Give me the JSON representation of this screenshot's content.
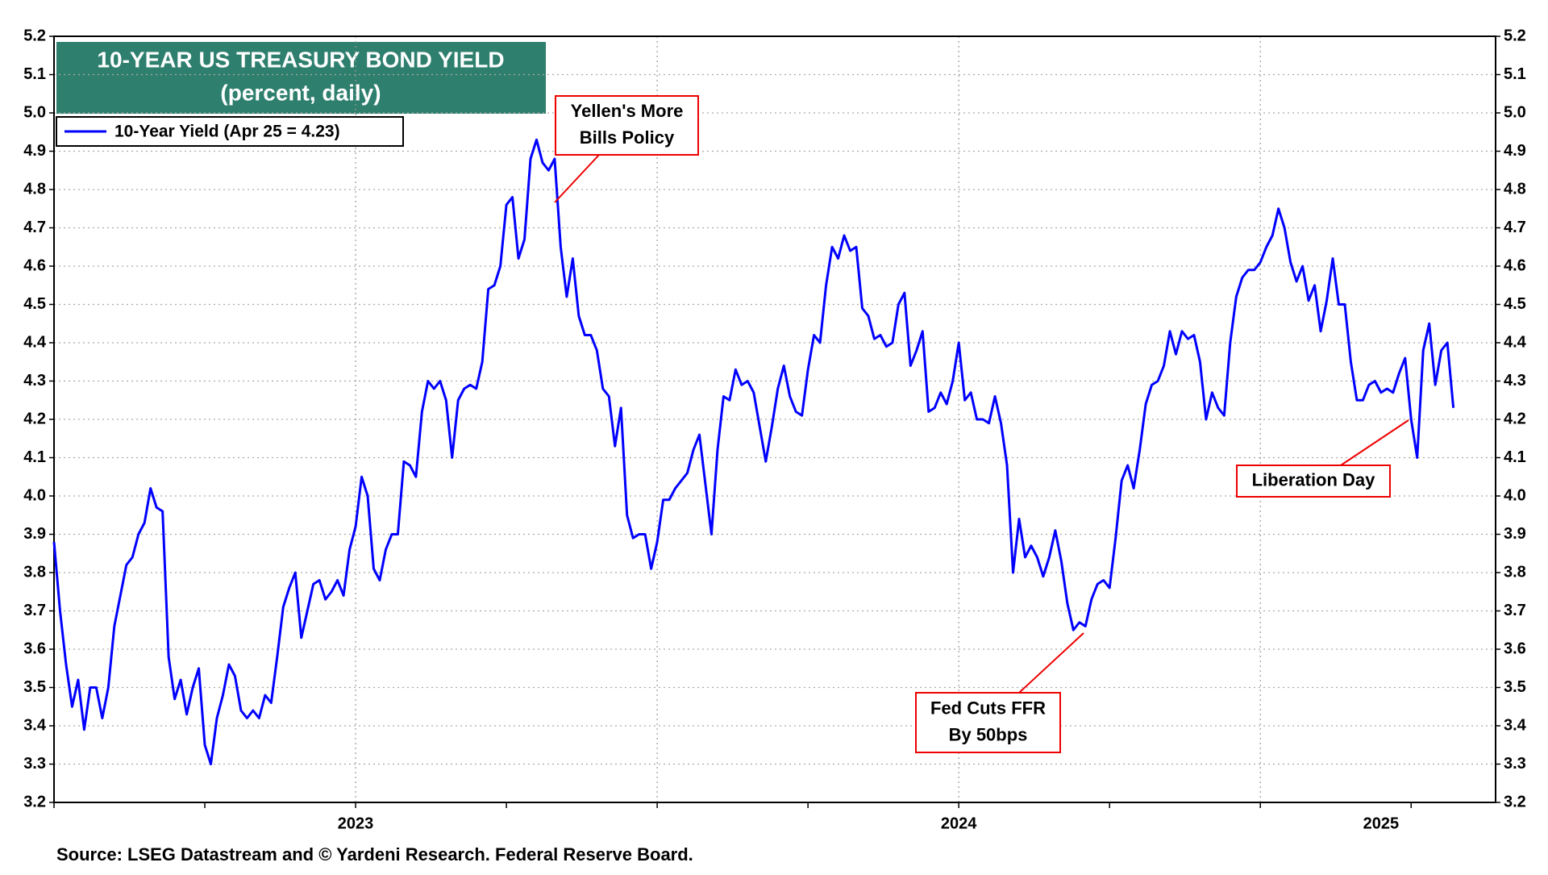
{
  "chart_data": {
    "type": "line",
    "title": "10-YEAR US TREASURY BOND YIELD",
    "subtitle": "(percent, daily)",
    "source": "Source: LSEG Datastream and © Yardeni Research. Federal Reserve Board.",
    "xlim": [
      2023,
      2025.39
    ],
    "xticks": [
      {
        "value": 2023.5,
        "label": "2023"
      },
      {
        "value": 2024.5,
        "label": "2024"
      },
      {
        "value": 2025.2,
        "label": "2025"
      }
    ],
    "xgrid": [
      2023.5,
      2024,
      2024.5,
      2025
    ],
    "xminor": [
      2023,
      2023.25,
      2023.5,
      2023.75,
      2024,
      2024.25,
      2024.5,
      2024.75,
      2025,
      2025.25
    ],
    "ylim": [
      3.2,
      5.2
    ],
    "yticks": [
      3.2,
      3.3,
      3.4,
      3.5,
      3.6,
      3.7,
      3.8,
      3.9,
      {
        "value": 4,
        "label": "4.0"
      },
      4.1,
      4.2,
      4.3,
      4.4,
      4.5,
      4.6,
      4.7,
      4.8,
      4.9,
      {
        "value": 5,
        "label": "5.0"
      },
      5.1,
      5.2
    ],
    "y2lim": [
      3.2,
      5.2
    ],
    "y2ticks": [
      3.2,
      3.3,
      3.4,
      3.5,
      3.6,
      3.7,
      3.8,
      3.9,
      {
        "value": 4,
        "label": "4.0"
      },
      4.1,
      4.2,
      4.3,
      4.4,
      4.5,
      4.6,
      4.7,
      4.8,
      4.9,
      {
        "value": 5,
        "label": "5.0"
      },
      5.1,
      5.2
    ],
    "grid": true,
    "legend": "top-left",
    "annotations": [
      {
        "lines": [
          "Yellen's More",
          "Bills Policy"
        ]
      },
      {
        "lines": [
          "Fed Cuts FFR",
          "By 50bps"
        ]
      },
      {
        "lines": [
          "Liberation Day"
        ]
      }
    ],
    "x": [
      2023,
      2023.01,
      2023.02,
      2023.03,
      2023.04,
      2023.05,
      2023.06,
      2023.07,
      2023.08,
      2023.09,
      2023.1,
      2023.11,
      2023.12,
      2023.13,
      2023.14,
      2023.15,
      2023.16,
      2023.17,
      2023.18,
      2023.19,
      2023.2,
      2023.21,
      2023.22,
      2023.23,
      2023.24,
      2023.25,
      2023.26,
      2023.27,
      2023.28,
      2023.29,
      2023.3,
      2023.31,
      2023.32,
      2023.33,
      2023.34,
      2023.35,
      2023.36,
      2023.37,
      2023.38,
      2023.39,
      2023.4,
      2023.41,
      2023.42,
      2023.43,
      2023.44,
      2023.45,
      2023.46,
      2023.47,
      2023.48,
      2023.49,
      2023.5,
      2023.51,
      2023.52,
      2023.53,
      2023.54,
      2023.55,
      2023.56,
      2023.57,
      2023.58,
      2023.59,
      2023.6,
      2023.61,
      2023.62,
      2023.63,
      2023.64,
      2023.65,
      2023.66,
      2023.67,
      2023.68,
      2023.69,
      2023.7,
      2023.71,
      2023.72,
      2023.73,
      2023.74,
      2023.75,
      2023.76,
      2023.77,
      2023.78,
      2023.79,
      2023.8,
      2023.81,
      2023.82,
      2023.83,
      2023.84,
      2023.85,
      2023.86,
      2023.87,
      2023.88,
      2023.89,
      2023.9,
      2023.91,
      2023.92,
      2023.93,
      2023.94,
      2023.95,
      2023.96,
      2023.97,
      2023.98,
      2023.99,
      2024,
      2024.01,
      2024.02,
      2024.03,
      2024.04,
      2024.05,
      2024.06,
      2024.07,
      2024.08,
      2024.09,
      2024.1,
      2024.11,
      2024.12,
      2024.13,
      2024.14,
      2024.15,
      2024.16,
      2024.17,
      2024.18,
      2024.19,
      2024.2,
      2024.21,
      2024.22,
      2024.23,
      2024.24,
      2024.25,
      2024.26,
      2024.27,
      2024.28,
      2024.29,
      2024.3,
      2024.31,
      2024.32,
      2024.33,
      2024.34,
      2024.35,
      2024.36,
      2024.37,
      2024.38,
      2024.39,
      2024.4,
      2024.41,
      2024.42,
      2024.43,
      2024.44,
      2024.45,
      2024.46,
      2024.47,
      2024.48,
      2024.49,
      2024.5,
      2024.51,
      2024.52,
      2024.53,
      2024.54,
      2024.55,
      2024.56,
      2024.57,
      2024.58,
      2024.59,
      2024.6,
      2024.61,
      2024.62,
      2024.63,
      2024.64,
      2024.65,
      2024.66,
      2024.67,
      2024.68,
      2024.69,
      2024.7,
      2024.71,
      2024.72,
      2024.73,
      2024.74,
      2024.75,
      2024.76,
      2024.77,
      2024.78,
      2024.79,
      2024.8,
      2024.81,
      2024.82,
      2024.83,
      2024.84,
      2024.85,
      2024.86,
      2024.87,
      2024.88,
      2024.89,
      2024.9,
      2024.91,
      2024.92,
      2024.93,
      2024.94,
      2024.95,
      2024.96,
      2024.97,
      2024.98,
      2024.99,
      2025,
      2025.01,
      2025.02,
      2025.03,
      2025.04,
      2025.05,
      2025.06,
      2025.07,
      2025.08,
      2025.09,
      2025.1,
      2025.11,
      2025.12,
      2025.13,
      2025.14,
      2025.15,
      2025.16,
      2025.17,
      2025.18,
      2025.19,
      2025.2,
      2025.21,
      2025.22,
      2025.23,
      2025.24,
      2025.25,
      2025.26,
      2025.27,
      2025.28,
      2025.29,
      2025.3,
      2025.31,
      2025.32
    ],
    "series": [
      {
        "name": "10-Year Yield (Apr 25 = 4.23)",
        "color": "#0000ff",
        "values": [
          3.88,
          3.7,
          3.56,
          3.45,
          3.52,
          3.39,
          3.5,
          3.5,
          3.42,
          3.5,
          3.66,
          3.74,
          3.82,
          3.84,
          3.9,
          3.93,
          4.02,
          3.97,
          3.96,
          3.58,
          3.47,
          3.52,
          3.43,
          3.5,
          3.55,
          3.35,
          3.3,
          3.42,
          3.48,
          3.56,
          3.53,
          3.44,
          3.42,
          3.44,
          3.42,
          3.48,
          3.46,
          3.58,
          3.71,
          3.76,
          3.8,
          3.63,
          3.7,
          3.77,
          3.78,
          3.73,
          3.75,
          3.78,
          3.74,
          3.86,
          3.92,
          4.05,
          4.0,
          3.81,
          3.78,
          3.86,
          3.9,
          3.9,
          4.09,
          4.08,
          4.05,
          4.22,
          4.3,
          4.28,
          4.3,
          4.25,
          4.1,
          4.25,
          4.28,
          4.29,
          4.28,
          4.35,
          4.54,
          4.55,
          4.6,
          4.76,
          4.78,
          4.62,
          4.67,
          4.88,
          4.93,
          4.87,
          4.85,
          4.88,
          4.65,
          4.52,
          4.62,
          4.47,
          4.42,
          4.42,
          4.38,
          4.28,
          4.26,
          4.13,
          4.23,
          3.95,
          3.89,
          3.9,
          3.9,
          3.81,
          3.88,
          3.99,
          3.99,
          4.02,
          4.04,
          4.06,
          4.12,
          4.16,
          4.03,
          3.9,
          4.12,
          4.26,
          4.25,
          4.33,
          4.29,
          4.3,
          4.27,
          4.18,
          4.09,
          4.18,
          4.28,
          4.34,
          4.26,
          4.22,
          4.21,
          4.33,
          4.42,
          4.4,
          4.55,
          4.65,
          4.62,
          4.68,
          4.64,
          4.65,
          4.49,
          4.47,
          4.41,
          4.42,
          4.39,
          4.4,
          4.5,
          4.53,
          4.34,
          4.38,
          4.43,
          4.22,
          4.23,
          4.27,
          4.24,
          4.3,
          4.4,
          4.25,
          4.27,
          4.2,
          4.2,
          4.19,
          4.26,
          4.19,
          4.08,
          3.8,
          3.94,
          3.84,
          3.87,
          3.84,
          3.79,
          3.84,
          3.91,
          3.83,
          3.72,
          3.65,
          3.67,
          3.66,
          3.73,
          3.77,
          3.78,
          3.76,
          3.89,
          4.04,
          4.08,
          4.02,
          4.12,
          4.24,
          4.29,
          4.3,
          4.34,
          4.43,
          4.37,
          4.43,
          4.41,
          4.42,
          4.35,
          4.2,
          4.27,
          4.23,
          4.21,
          4.4,
          4.52,
          4.57,
          4.59,
          4.59,
          4.61,
          4.65,
          4.68,
          4.75,
          4.7,
          4.61,
          4.56,
          4.6,
          4.51,
          4.55,
          4.43,
          4.51,
          4.62,
          4.5,
          4.5,
          4.35,
          4.25,
          4.25,
          4.29,
          4.3,
          4.27,
          4.28,
          4.27,
          4.32,
          4.36,
          4.2,
          4.1,
          4.38,
          4.45,
          4.29,
          4.38,
          4.4,
          4.23
        ]
      }
    ]
  }
}
